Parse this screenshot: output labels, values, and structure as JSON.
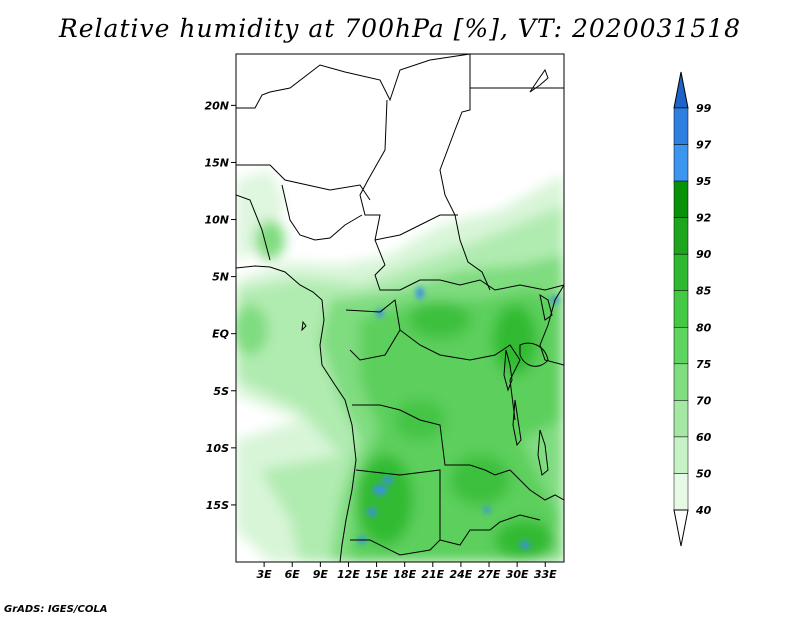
{
  "title": "Relative humidity at 700hPa [%], VT: 2020031518",
  "credit": "GrADS: IGES/COLA",
  "map": {
    "lon_min": 0,
    "lon_max": 35,
    "lat_min": -20,
    "lat_max": 24.5,
    "x_ticks": [
      "3E",
      "6E",
      "9E",
      "12E",
      "15E",
      "18E",
      "21E",
      "24E",
      "27E",
      "30E",
      "33E"
    ],
    "x_tick_values": [
      3,
      6,
      9,
      12,
      15,
      18,
      21,
      24,
      27,
      30,
      33
    ],
    "y_ticks": [
      "20N",
      "15N",
      "10N",
      "5N",
      "EQ",
      "5S",
      "10S",
      "15S"
    ],
    "y_tick_values": [
      20,
      15,
      10,
      5,
      0,
      -5,
      -10,
      -15
    ]
  },
  "colorbar": {
    "levels": [
      "99",
      "97",
      "95",
      "92",
      "90",
      "85",
      "80",
      "75",
      "70",
      "60",
      "50",
      "40"
    ],
    "colors": [
      "#1e64c8",
      "#2e7fe0",
      "#3c96f0",
      "#0a910a",
      "#1ea51e",
      "#30b830",
      "#44c944",
      "#60d460",
      "#80dd80",
      "#a4e8a4",
      "#c6f2c6",
      "#e6fae6"
    ]
  }
}
